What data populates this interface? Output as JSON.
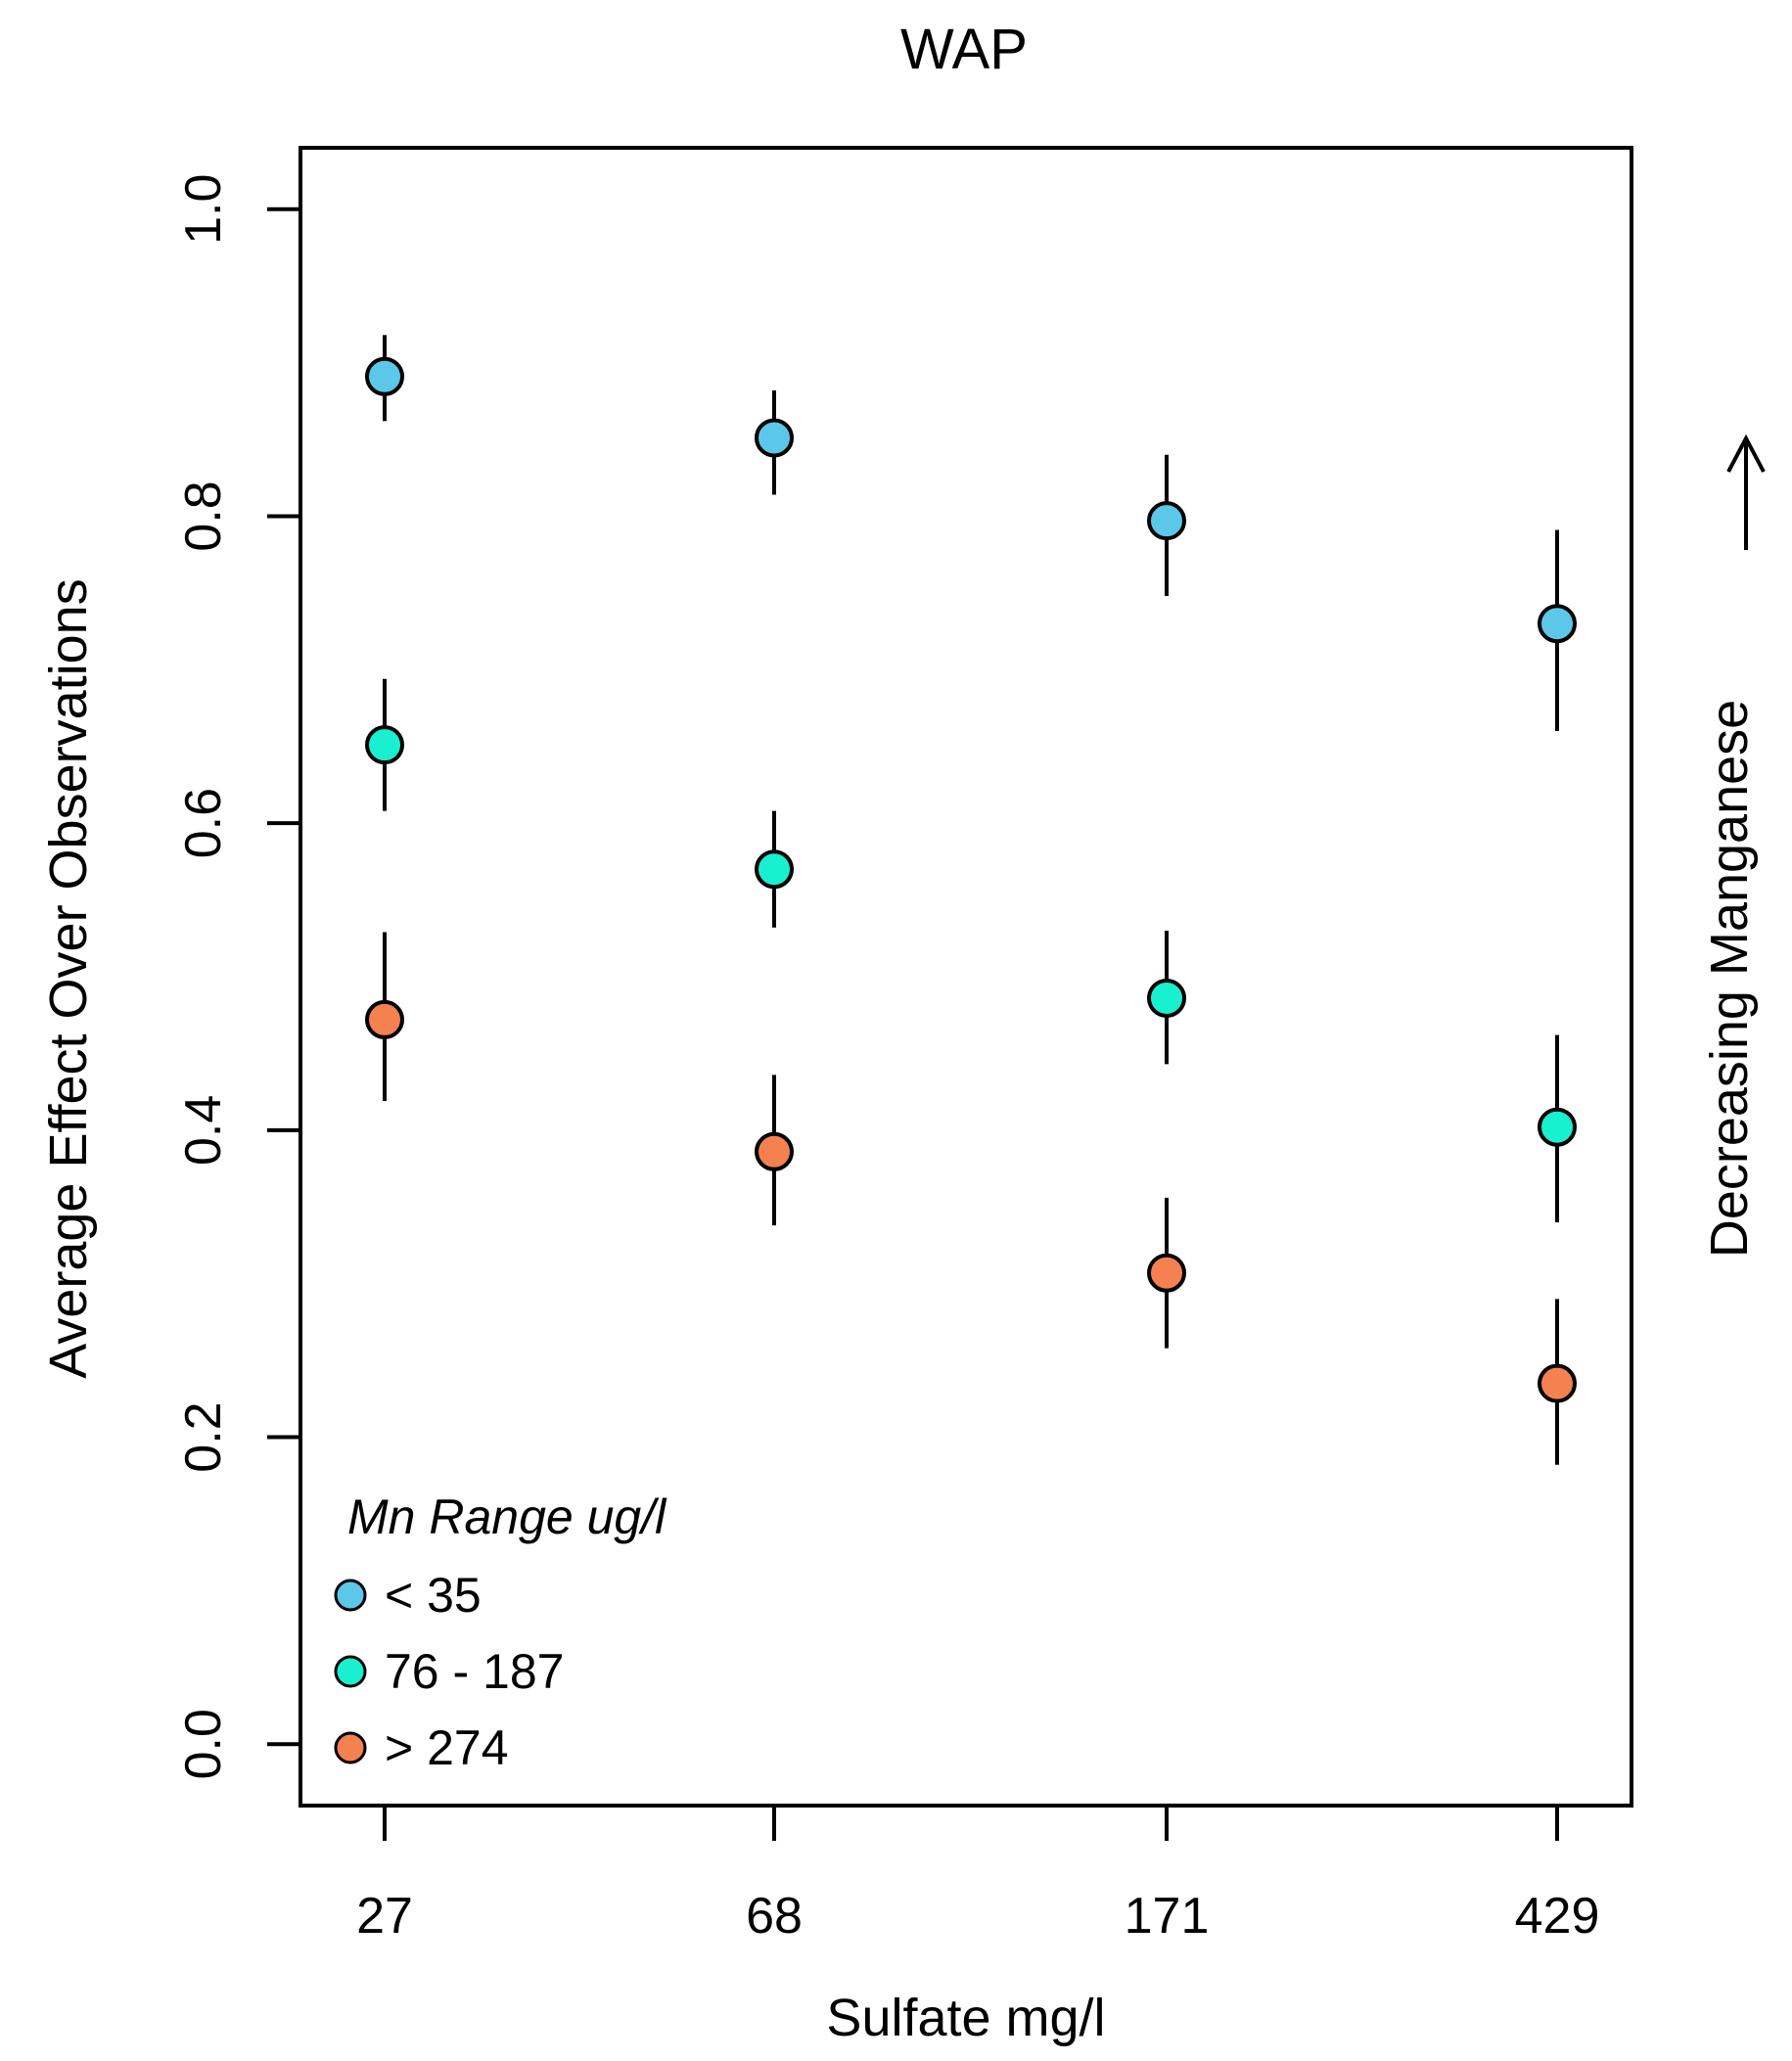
{
  "chart_data": {
    "type": "scatter",
    "title": "WAP",
    "xlabel": "Sulfate mg/l",
    "ylabel": "Average Effect Over Observations",
    "categories": [
      "27",
      "68",
      "171",
      "429"
    ],
    "ylim": [
      -0.04,
      1.04
    ],
    "yticks": [
      "0.0",
      "0.2",
      "0.4",
      "0.6",
      "0.8",
      "1.0"
    ],
    "grid": false,
    "legend": {
      "title": "Mn Range ug/l",
      "placement": "bottom-left"
    },
    "side_label": "Decreasing Manganese",
    "series": [
      {
        "name": "< 35",
        "color": "#5bc8ea",
        "values": [
          0.891,
          0.851,
          0.797,
          0.73
        ],
        "lower": [
          0.862,
          0.814,
          0.748,
          0.66
        ],
        "upper": [
          0.918,
          0.882,
          0.84,
          0.791
        ]
      },
      {
        "name": "76 - 187",
        "color": "#19f0cf",
        "values": [
          0.651,
          0.57,
          0.486,
          0.402
        ],
        "lower": [
          0.608,
          0.532,
          0.443,
          0.34
        ],
        "upper": [
          0.694,
          0.608,
          0.53,
          0.462
        ]
      },
      {
        "name": "> 274",
        "color": "#f58050",
        "values": [
          0.472,
          0.386,
          0.307,
          0.235
        ],
        "lower": [
          0.419,
          0.338,
          0.258,
          0.182
        ],
        "upper": [
          0.529,
          0.436,
          0.356,
          0.29
        ]
      }
    ]
  }
}
